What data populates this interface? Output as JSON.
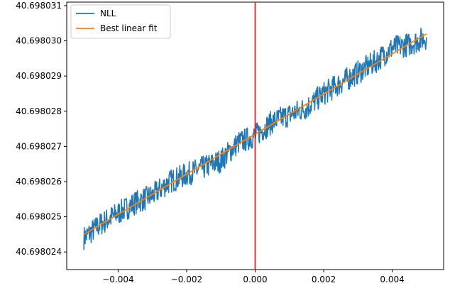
{
  "chart_data": {
    "type": "line",
    "title": "",
    "xlabel": "",
    "ylabel": "",
    "xlim": [
      -0.0055,
      0.0055
    ],
    "ylim": [
      40.6980235,
      40.6980311
    ],
    "xticks": [
      -0.004,
      -0.002,
      0.0,
      0.002,
      0.004
    ],
    "xtick_labels": [
      "−0.004",
      "−0.002",
      "0.000",
      "0.002",
      "0.004"
    ],
    "yticks": [
      40.698024,
      40.698025,
      40.698026,
      40.698027,
      40.698028,
      40.698029,
      40.69803,
      40.698031
    ],
    "ytick_labels": [
      "40.698024",
      "40.698025",
      "40.698026",
      "40.698027",
      "40.698028",
      "40.698029",
      "40.698030",
      "40.698031"
    ],
    "grid": false,
    "legend_position": "top-left",
    "vertical_line": {
      "x": 0.0,
      "color": "#d62728"
    },
    "series": [
      {
        "name": "NLL",
        "color": "#1f77b4",
        "x": [
          -0.005,
          -0.0045,
          -0.004,
          -0.0035,
          -0.003,
          -0.0025,
          -0.002,
          -0.0015,
          -0.001,
          -0.0005,
          0.0,
          0.0005,
          0.001,
          0.0015,
          0.002,
          0.0025,
          0.003,
          0.0035,
          0.004,
          0.0045,
          0.005
        ],
        "y": [
          40.6980244,
          40.6980248,
          40.6980251,
          40.6980254,
          40.6980256,
          40.698026,
          40.6980262,
          40.6980264,
          40.6980266,
          40.6980271,
          40.6980273,
          40.6980277,
          40.6980279,
          40.6980281,
          40.6980285,
          40.6980288,
          40.6980291,
          40.6980294,
          40.6980298,
          40.6980299,
          40.6980301
        ]
      },
      {
        "name": "Best linear fit",
        "color": "#ff7f0e",
        "x": [
          -0.005,
          0.005
        ],
        "y": [
          40.6980245,
          40.6980302
        ]
      }
    ]
  }
}
